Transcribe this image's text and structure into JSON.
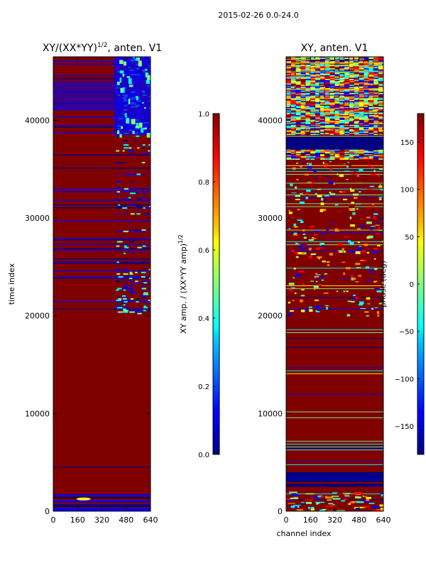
{
  "suptitle": "2015-02-26 0.0-24.0",
  "chart_data": [
    {
      "type": "heatmap",
      "title_main": "XY/(XX*YY)",
      "title_exponent": "1/2",
      "title_suffix": ", anten. V1",
      "xlabel": "",
      "ylabel": "time index",
      "xlim": [
        0,
        640
      ],
      "ylim": [
        0,
        46500
      ],
      "xticks": [
        0,
        160,
        320,
        480,
        640
      ],
      "yticks": [
        0,
        10000,
        20000,
        30000,
        40000
      ],
      "background_value_label": "mostly ~1.0 (dark red), banded low-value rows, lower values at channels > 400",
      "colorbar": {
        "label_main": "XY amp. / (XX*YY amp)",
        "label_exponent": "1/2",
        "range": [
          0.0,
          1.0
        ],
        "ticks": [
          "0.0",
          "0.2",
          "0.4",
          "0.6",
          "0.8",
          "1.0"
        ]
      }
    },
    {
      "type": "heatmap",
      "title": "XY, anten. V1",
      "xlabel": "channel index",
      "ylabel": "",
      "xlim": [
        0,
        640
      ],
      "ylim": [
        0,
        46500
      ],
      "xticks": [
        0,
        160,
        320,
        480,
        640
      ],
      "yticks": [
        0,
        10000,
        20000,
        30000,
        40000
      ],
      "colorbar": {
        "label": "phase (deg)",
        "range": [
          -180,
          180
        ],
        "ticks": [
          "150",
          "100",
          "50",
          "0",
          "−50",
          "−100",
          "−150"
        ]
      }
    }
  ],
  "colors": {
    "jet_dark_red": "#800000",
    "jet_red": "#ff0000",
    "jet_orange": "#ff8000",
    "jet_yellow": "#ffff00",
    "jet_green": "#80ff80",
    "jet_cyan": "#00ffff",
    "jet_blue": "#0000ff",
    "jet_dark_blue": "#000080"
  }
}
